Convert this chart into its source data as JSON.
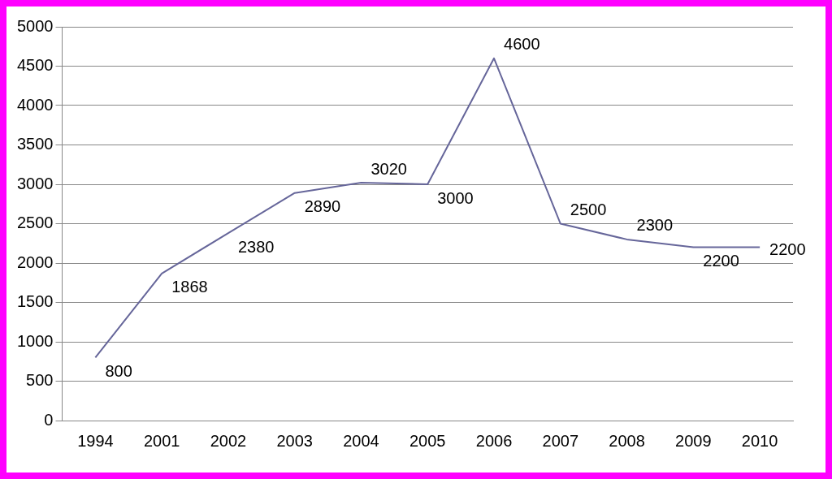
{
  "chart_data": {
    "type": "line",
    "categories": [
      "1994",
      "2001",
      "2002",
      "2003",
      "2004",
      "2005",
      "2006",
      "2007",
      "2008",
      "2009",
      "2010"
    ],
    "series": [
      {
        "color": "#66669a",
        "values": [
          800,
          1868,
          2380,
          2890,
          3020,
          3000,
          4600,
          2500,
          2300,
          2200,
          2200
        ],
        "value_labels": [
          "800",
          "1868",
          "2380",
          "2890",
          "3020",
          "3000",
          "4600",
          "2500",
          "2300",
          "2200",
          "2200"
        ]
      }
    ],
    "ylim": [
      0,
      5000
    ],
    "yticks": [
      0,
      500,
      1000,
      1500,
      2000,
      2500,
      3000,
      3500,
      4000,
      4500,
      5000
    ],
    "grid": "y",
    "legend": false,
    "marker": "none",
    "line_style": "solid"
  }
}
